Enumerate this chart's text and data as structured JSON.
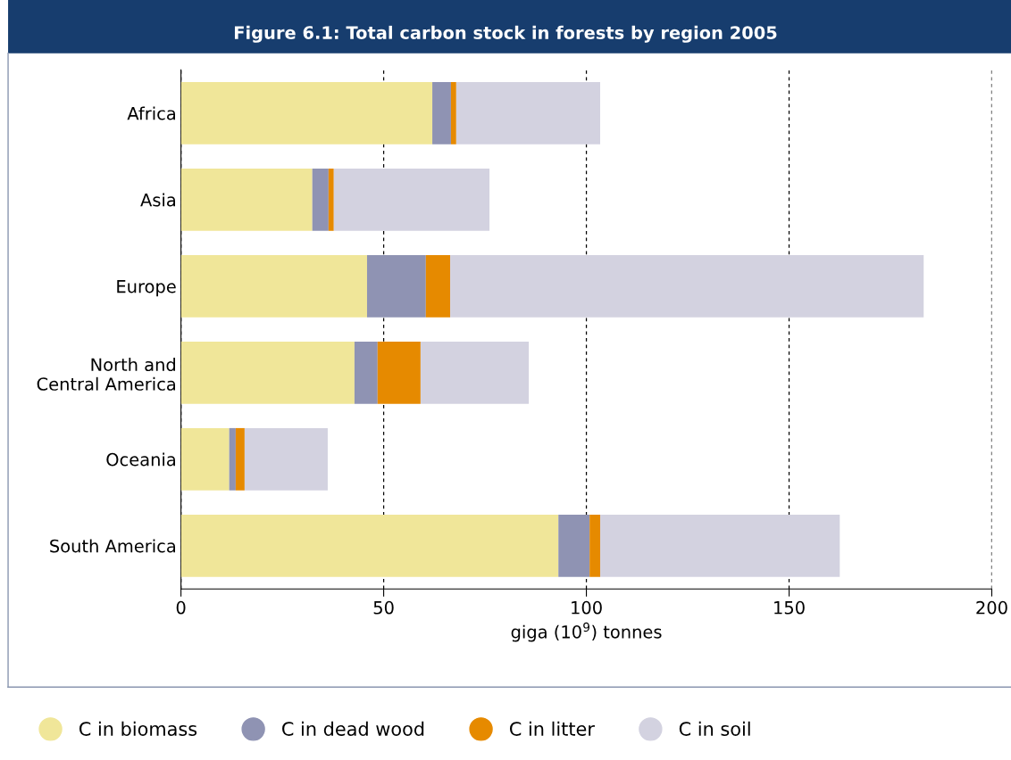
{
  "chart_data": {
    "type": "bar",
    "orientation": "horizontal",
    "stacked": true,
    "title": "Figure 6.1: Total carbon stock in forests by region 2005",
    "xlabel": "giga (10$^{9}$) tonnes",
    "categories": [
      "Africa",
      "Asia",
      "Europe",
      "North and\nCentral America",
      "Oceania",
      "South America"
    ],
    "series": [
      {
        "name": "C in biomass",
        "color": "#f0e699",
        "values": [
          62.0,
          32.4,
          45.9,
          42.8,
          11.9,
          93.1
        ]
      },
      {
        "name": "C in dead wood",
        "color": "#8f93b3",
        "values": [
          4.6,
          4.0,
          14.5,
          5.7,
          1.6,
          7.7
        ]
      },
      {
        "name": "C in litter",
        "color": "#e68a00",
        "values": [
          1.3,
          1.3,
          6.0,
          10.6,
          2.2,
          2.6
        ]
      },
      {
        "name": "C in soil",
        "color": "#d3d2e0",
        "values": [
          35.5,
          38.4,
          116.8,
          26.7,
          20.5,
          59.1
        ]
      }
    ],
    "xlim": [
      0,
      200
    ],
    "xticks": [
      0,
      50,
      100,
      150,
      200
    ],
    "grid": "x",
    "legend": "bottom"
  }
}
